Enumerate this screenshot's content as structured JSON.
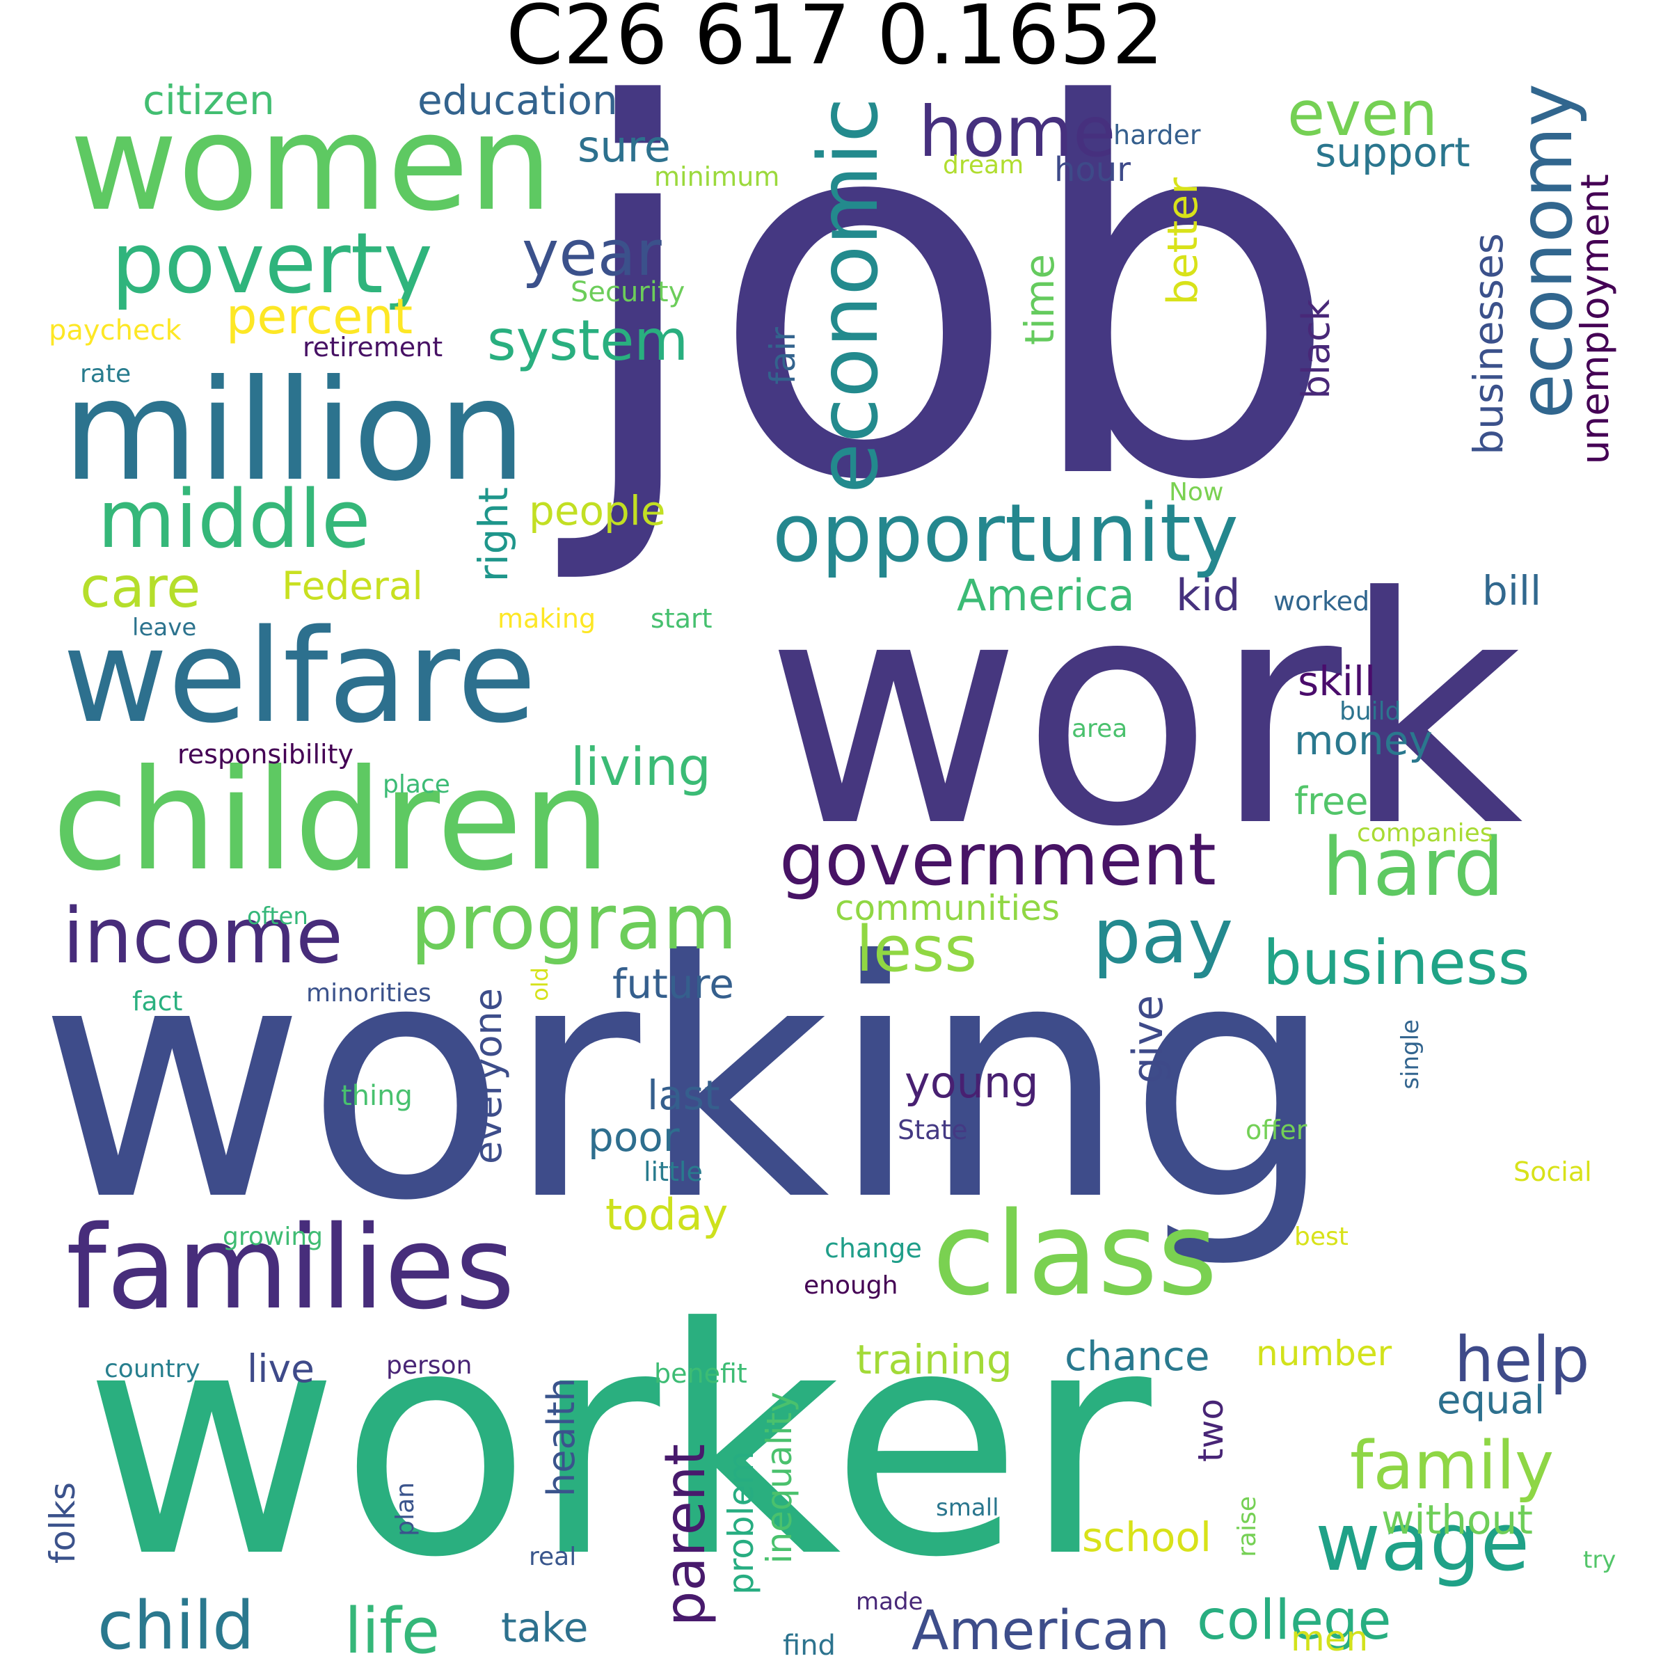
{
  "title": "C26 617 0.1652",
  "words": [
    {
      "text": "job",
      "color": "#453882"
    },
    {
      "text": "work",
      "color": "#46377f"
    },
    {
      "text": "working",
      "color": "#3e4c8a"
    },
    {
      "text": "worker",
      "color": "#2aaf7f"
    },
    {
      "text": "women",
      "color": "#5ec962"
    },
    {
      "text": "million",
      "color": "#2c738e"
    },
    {
      "text": "welfare",
      "color": "#2d708e"
    },
    {
      "text": "children",
      "color": "#5ec962"
    },
    {
      "text": "families",
      "color": "#472d7b"
    },
    {
      "text": "class",
      "color": "#7ad151"
    },
    {
      "text": "poverty",
      "color": "#2fb47c"
    },
    {
      "text": "middle",
      "color": "#35b779"
    },
    {
      "text": "opportunity",
      "color": "#24878e"
    },
    {
      "text": "economic",
      "color": "#238a8d"
    },
    {
      "text": "economy",
      "color": "#31668e"
    },
    {
      "text": "home",
      "color": "#46307e"
    },
    {
      "text": "even",
      "color": "#75d054"
    },
    {
      "text": "government",
      "color": "#471365"
    },
    {
      "text": "income",
      "color": "#472c7a"
    },
    {
      "text": "program",
      "color": "#6ccd5a"
    },
    {
      "text": "hard",
      "color": "#5ec962"
    },
    {
      "text": "pay",
      "color": "#23898e"
    },
    {
      "text": "business",
      "color": "#20a386"
    },
    {
      "text": "year",
      "color": "#3b518b"
    },
    {
      "text": "system",
      "color": "#29af7f"
    },
    {
      "text": "percent",
      "color": "#fde725"
    },
    {
      "text": "care",
      "color": "#b5de2b"
    },
    {
      "text": "less",
      "color": "#90d743"
    },
    {
      "text": "help",
      "color": "#3e4a89"
    },
    {
      "text": "family",
      "color": "#8ed645"
    },
    {
      "text": "wage",
      "color": "#1fa187"
    },
    {
      "text": "child",
      "color": "#2a788e"
    },
    {
      "text": "life",
      "color": "#35b779"
    },
    {
      "text": "American",
      "color": "#3d4d8a"
    },
    {
      "text": "college",
      "color": "#28ae80"
    },
    {
      "text": "parent",
      "color": "#481a6c"
    },
    {
      "text": "living",
      "color": "#3bbb75"
    },
    {
      "text": "government2",
      "color": "#471365"
    },
    {
      "text": "sure",
      "color": "#2d718e"
    },
    {
      "text": "education",
      "color": "#33638d"
    },
    {
      "text": "citizen",
      "color": "#42be71"
    },
    {
      "text": "support",
      "color": "#2a768e"
    },
    {
      "text": "better",
      "color": "#d8e219"
    },
    {
      "text": "time",
      "color": "#65cb5e"
    },
    {
      "text": "businesses",
      "color": "#3b518b"
    },
    {
      "text": "unemployment",
      "color": "#440154"
    },
    {
      "text": "black",
      "color": "#482878"
    },
    {
      "text": "right",
      "color": "#1f968b"
    },
    {
      "text": "fair",
      "color": "#33638d"
    },
    {
      "text": "people",
      "color": "#c2df23"
    },
    {
      "text": "America",
      "color": "#3bbb75"
    },
    {
      "text": "kid",
      "color": "#46327e"
    },
    {
      "text": "Federal",
      "color": "#c8e020"
    },
    {
      "text": "bill",
      "color": "#31688e"
    },
    {
      "text": "skill",
      "color": "#4a0c6b"
    },
    {
      "text": "money",
      "color": "#2a788e"
    },
    {
      "text": "free",
      "color": "#52c569"
    },
    {
      "text": "communities",
      "color": "#90d743"
    },
    {
      "text": "future",
      "color": "#355f8d"
    },
    {
      "text": "young",
      "color": "#482071"
    },
    {
      "text": "give",
      "color": "#3e4a89"
    },
    {
      "text": "everyone",
      "color": "#3d4d8a"
    },
    {
      "text": "last",
      "color": "#355f8d"
    },
    {
      "text": "poor",
      "color": "#2e6e8e"
    },
    {
      "text": "today",
      "color": "#cde11d"
    },
    {
      "text": "training",
      "color": "#a2da37"
    },
    {
      "text": "chance",
      "color": "#29798e"
    },
    {
      "text": "number",
      "color": "#d2e21b"
    },
    {
      "text": "equal",
      "color": "#2d708e"
    },
    {
      "text": "without",
      "color": "#6ece58"
    },
    {
      "text": "two",
      "color": "#482576"
    },
    {
      "text": "school",
      "color": "#d8e219"
    },
    {
      "text": "health",
      "color": "#3a548c"
    },
    {
      "text": "problem",
      "color": "#27ad81"
    },
    {
      "text": "inequality",
      "color": "#4ac16d"
    },
    {
      "text": "take",
      "color": "#2d718e"
    },
    {
      "text": "live",
      "color": "#3e4a89"
    },
    {
      "text": "folks",
      "color": "#3b528b"
    },
    {
      "text": "men",
      "color": "#d2e21b"
    },
    {
      "text": "find",
      "color": "#2c738e"
    },
    {
      "text": "made",
      "color": "#482878"
    },
    {
      "text": "real",
      "color": "#39568c"
    },
    {
      "text": "plan",
      "color": "#3a548c"
    },
    {
      "text": "raise",
      "color": "#75d054"
    },
    {
      "text": "small",
      "color": "#2a768e"
    },
    {
      "text": "try",
      "color": "#52c569"
    },
    {
      "text": "Social",
      "color": "#d8e219"
    },
    {
      "text": "offer",
      "color": "#73d056"
    },
    {
      "text": "single",
      "color": "#32648e"
    },
    {
      "text": "State",
      "color": "#443983"
    },
    {
      "text": "little",
      "color": "#297b8e"
    },
    {
      "text": "change",
      "color": "#1f9e89"
    },
    {
      "text": "best",
      "color": "#d8e219"
    },
    {
      "text": "enough",
      "color": "#440154"
    },
    {
      "text": "benefit",
      "color": "#3dbc74"
    },
    {
      "text": "person",
      "color": "#482475"
    },
    {
      "text": "country",
      "color": "#277f8e"
    },
    {
      "text": "growing",
      "color": "#3fbc73"
    },
    {
      "text": "thing",
      "color": "#48c16e"
    },
    {
      "text": "minorities",
      "color": "#3b528b"
    },
    {
      "text": "fact",
      "color": "#2ab07f"
    },
    {
      "text": "often",
      "color": "#35b779"
    },
    {
      "text": "old",
      "color": "#d5e21a"
    },
    {
      "text": "place",
      "color": "#3cbb75"
    },
    {
      "text": "responsibility",
      "color": "#440154"
    },
    {
      "text": "leave",
      "color": "#2c738e"
    },
    {
      "text": "making",
      "color": "#fde725"
    },
    {
      "text": "start",
      "color": "#46c06f"
    },
    {
      "text": "area",
      "color": "#4ac16d"
    },
    {
      "text": "build",
      "color": "#2c738e"
    },
    {
      "text": "companies",
      "color": "#a8db34"
    },
    {
      "text": "worked",
      "color": "#31668e"
    },
    {
      "text": "Now",
      "color": "#7ad151"
    },
    {
      "text": "hour",
      "color": "#3e4a89"
    },
    {
      "text": "harder",
      "color": "#355f8d"
    },
    {
      "text": "dream",
      "color": "#b0dd2f"
    },
    {
      "text": "minimum",
      "color": "#9bd93c"
    },
    {
      "text": "Security",
      "color": "#6ccd5a"
    },
    {
      "text": "retirement",
      "color": "#471164"
    },
    {
      "text": "paycheck",
      "color": "#fde725"
    },
    {
      "text": "rate",
      "color": "#287c8e"
    }
  ]
}
